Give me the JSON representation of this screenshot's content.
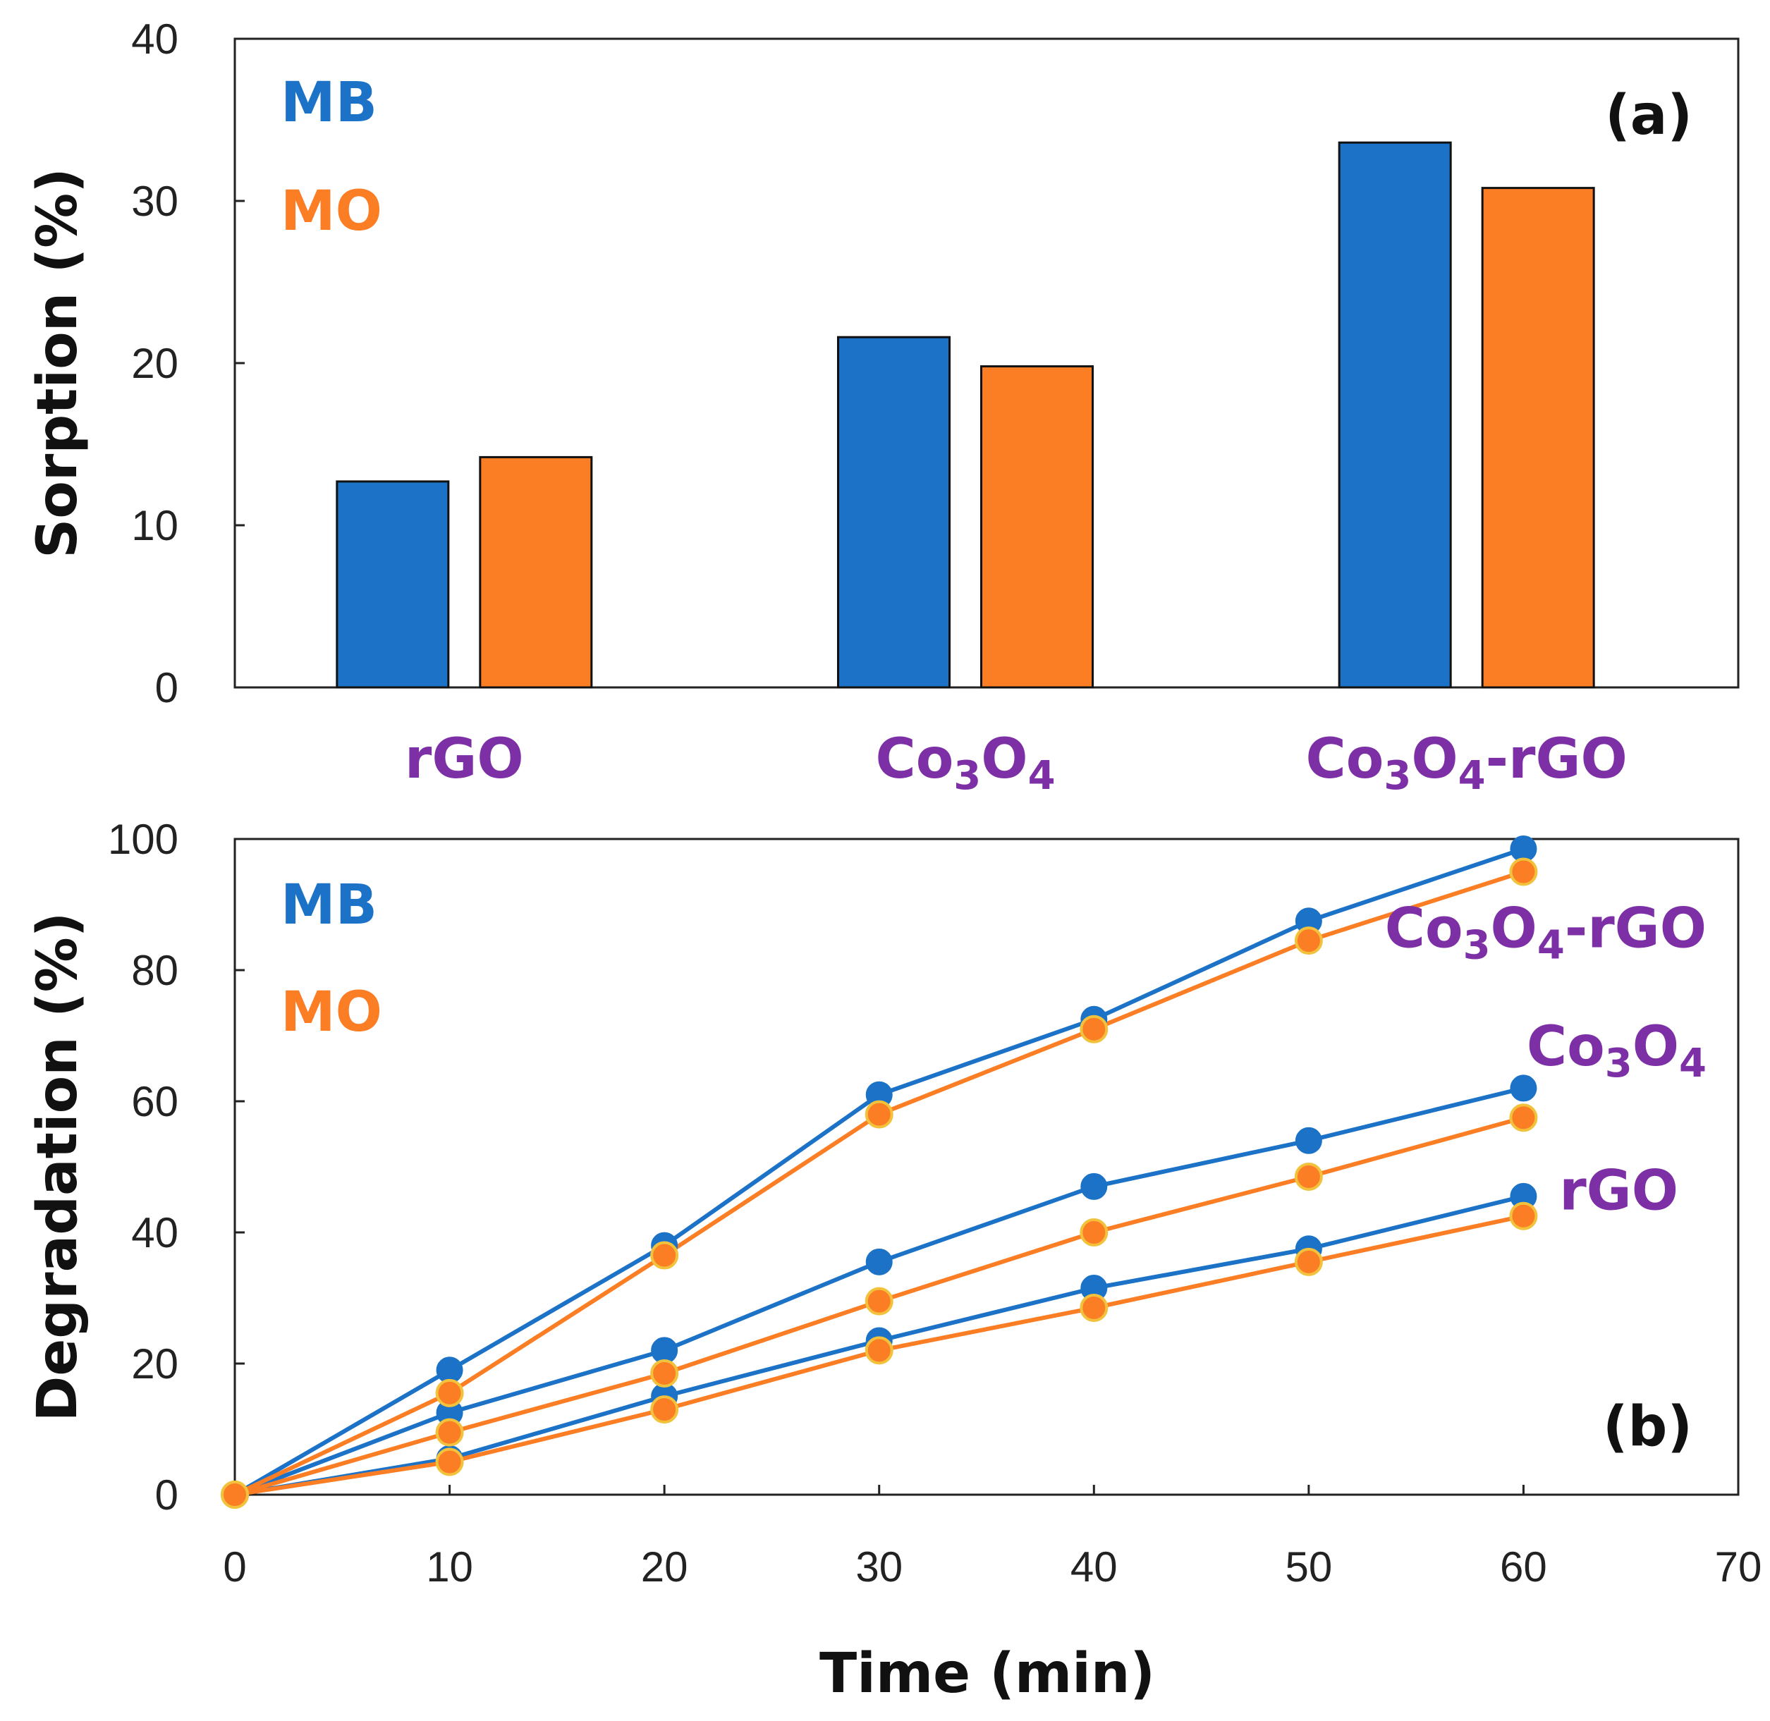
{
  "colors": {
    "mb": "#1b72c6",
    "mo": "#fb7d24",
    "label": "#7d2fa6",
    "axis": "#222222"
  },
  "chart_data": [
    {
      "panel": "(a)",
      "type": "bar",
      "ylabel": "Sorption (%)",
      "xlabel": "",
      "ylim": [
        0,
        40
      ],
      "yticks": [
        0,
        10,
        20,
        30,
        40
      ],
      "categories": [
        {
          "main": "rGO",
          "parts": [
            {
              "t": "rGO"
            }
          ]
        },
        {
          "main": "Co3O4",
          "parts": [
            {
              "t": "Co"
            },
            {
              "t": "3",
              "sub": true
            },
            {
              "t": "O"
            },
            {
              "t": "4",
              "sub": true
            }
          ]
        },
        {
          "main": "Co3O4-rGO",
          "parts": [
            {
              "t": "Co"
            },
            {
              "t": "3",
              "sub": true
            },
            {
              "t": "O"
            },
            {
              "t": "4",
              "sub": true
            },
            {
              "t": "-rGO"
            }
          ]
        }
      ],
      "series": [
        {
          "name": "MB",
          "values": [
            12.7,
            21.6,
            33.6
          ]
        },
        {
          "name": "MO",
          "values": [
            14.2,
            19.8,
            30.8
          ]
        }
      ],
      "legend": [
        "MB",
        "MO"
      ],
      "legend_position": "top-left"
    },
    {
      "panel": "(b)",
      "type": "line",
      "ylabel": "Degradation (%)",
      "xlabel": "Time (min)",
      "xlim": [
        0,
        70
      ],
      "ylim": [
        0,
        100
      ],
      "xticks": [
        0,
        10,
        20,
        30,
        40,
        50,
        60,
        70
      ],
      "yticks": [
        0,
        20,
        40,
        60,
        80,
        100
      ],
      "x": [
        0,
        10,
        20,
        30,
        40,
        50,
        60
      ],
      "series": [
        {
          "name": "MB",
          "material": "rGO",
          "values": [
            0,
            5.5,
            15,
            23.5,
            31.5,
            37.5,
            45.5
          ]
        },
        {
          "name": "MO",
          "material": "rGO",
          "values": [
            0,
            5,
            13,
            22,
            28.5,
            35.5,
            42.5
          ]
        },
        {
          "name": "MB",
          "material": "Co3O4",
          "values": [
            0,
            12.5,
            22,
            35.5,
            47,
            54,
            62
          ]
        },
        {
          "name": "MO",
          "material": "Co3O4",
          "values": [
            0,
            9.5,
            18.5,
            29.5,
            40,
            48.5,
            57.5
          ]
        },
        {
          "name": "MB",
          "material": "Co3O4-rGO",
          "values": [
            0,
            19,
            38,
            61,
            72.5,
            87.5,
            98.5
          ]
        },
        {
          "name": "MO",
          "material": "Co3O4-rGO",
          "values": [
            0,
            15.5,
            36.5,
            58,
            71,
            84.5,
            95
          ]
        }
      ],
      "curve_labels": [
        {
          "main": "Co3O4-rGO",
          "parts": [
            {
              "t": "Co"
            },
            {
              "t": "3",
              "sub": true
            },
            {
              "t": "O"
            },
            {
              "t": "4",
              "sub": true
            },
            {
              "t": "-rGO"
            }
          ]
        },
        {
          "main": "Co3O4",
          "parts": [
            {
              "t": "Co"
            },
            {
              "t": "3",
              "sub": true
            },
            {
              "t": "O"
            },
            {
              "t": "4",
              "sub": true
            }
          ]
        },
        {
          "main": "rGO",
          "parts": [
            {
              "t": "rGO"
            }
          ]
        }
      ],
      "legend": [
        "MB",
        "MO"
      ],
      "legend_position": "top-left"
    }
  ]
}
